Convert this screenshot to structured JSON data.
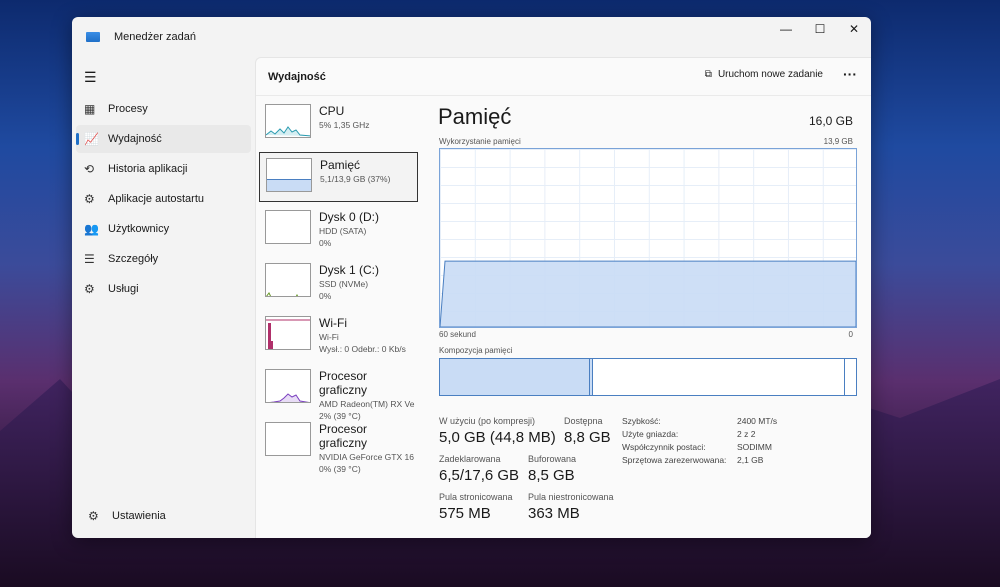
{
  "window": {
    "title": "Menedżer zadań",
    "controls": [
      "—",
      "☐",
      "✕"
    ]
  },
  "sidebar": {
    "items": [
      {
        "label": "Procesy",
        "icon": "▦",
        "name": "processes"
      },
      {
        "label": "Wydajność",
        "icon": "📈",
        "name": "performance",
        "active": true
      },
      {
        "label": "Historia aplikacji",
        "icon": "⟲",
        "name": "app-history"
      },
      {
        "label": "Aplikacje autostartu",
        "icon": "⚙",
        "name": "startup-apps"
      },
      {
        "label": "Użytkownicy",
        "icon": "👥",
        "name": "users"
      },
      {
        "label": "Szczegóły",
        "icon": "☰",
        "name": "details"
      },
      {
        "label": "Usługi",
        "icon": "⚙",
        "name": "services"
      }
    ],
    "settings": "Ustawienia"
  },
  "header": {
    "title": "Wydajność",
    "run_task": "Uruchom nowe zadanie",
    "more": "···"
  },
  "devices": [
    {
      "title": "CPU",
      "lines": [
        "5% 1,35 GHz"
      ]
    },
    {
      "title": "Pamięć",
      "lines": [
        "5,1/13,9 GB (37%)"
      ]
    },
    {
      "title": "Dysk 0 (D:)",
      "lines": [
        "HDD (SATA)",
        "0%"
      ]
    },
    {
      "title": "Dysk 1 (C:)",
      "lines": [
        "SSD (NVMe)",
        "0%"
      ]
    },
    {
      "title": "Wi-Fi",
      "lines": [
        "Wi-Fi",
        "Wysł.: 0 Odebr.: 0 Kb/s"
      ]
    },
    {
      "title": "Procesor graficzny",
      "lines": [
        "AMD Radeon(TM) RX Ve",
        "2% (39 °C)"
      ]
    },
    {
      "title": "Procesor graficzny",
      "lines": [
        "NVIDIA GeForce GTX 16",
        "0% (39 °C)"
      ]
    }
  ],
  "memory": {
    "title": "Pamięć",
    "total": "16,0 GB",
    "usage_label": "Wykorzystanie pamięci",
    "usage_max": "13,9 GB",
    "x_left": "60 sekund",
    "x_right": "0",
    "usage_percent": 37,
    "composition_label": "Kompozycja pamięci",
    "stats": [
      {
        "k": "W użyciu (po kompresji)",
        "v": "5,0 GB (44,8 MB)"
      },
      {
        "k": "Dostępna",
        "v": "8,8 GB"
      },
      {
        "k": "Zadeklarowana",
        "v": "6,5/17,6 GB"
      },
      {
        "k": "Buforowana",
        "v": "8,5 GB"
      },
      {
        "k": "Pula stronicowana",
        "v": "575 MB"
      },
      {
        "k": "Pula niestronicowana",
        "v": "363 MB"
      }
    ],
    "hardware": [
      {
        "k": "Szybkość:",
        "v": "2400 MT/s"
      },
      {
        "k": "Użyte gniazda:",
        "v": "2 z 2"
      },
      {
        "k": "Współczynnik postaci:",
        "v": "SODIMM"
      },
      {
        "k": "Sprzętowa zarezerwowana:",
        "v": "2,1 GB"
      }
    ]
  },
  "colors": {
    "accent": "#1f6fc7",
    "memory_fill": "#c9dcf5",
    "memory_line": "#4a7fc1"
  }
}
